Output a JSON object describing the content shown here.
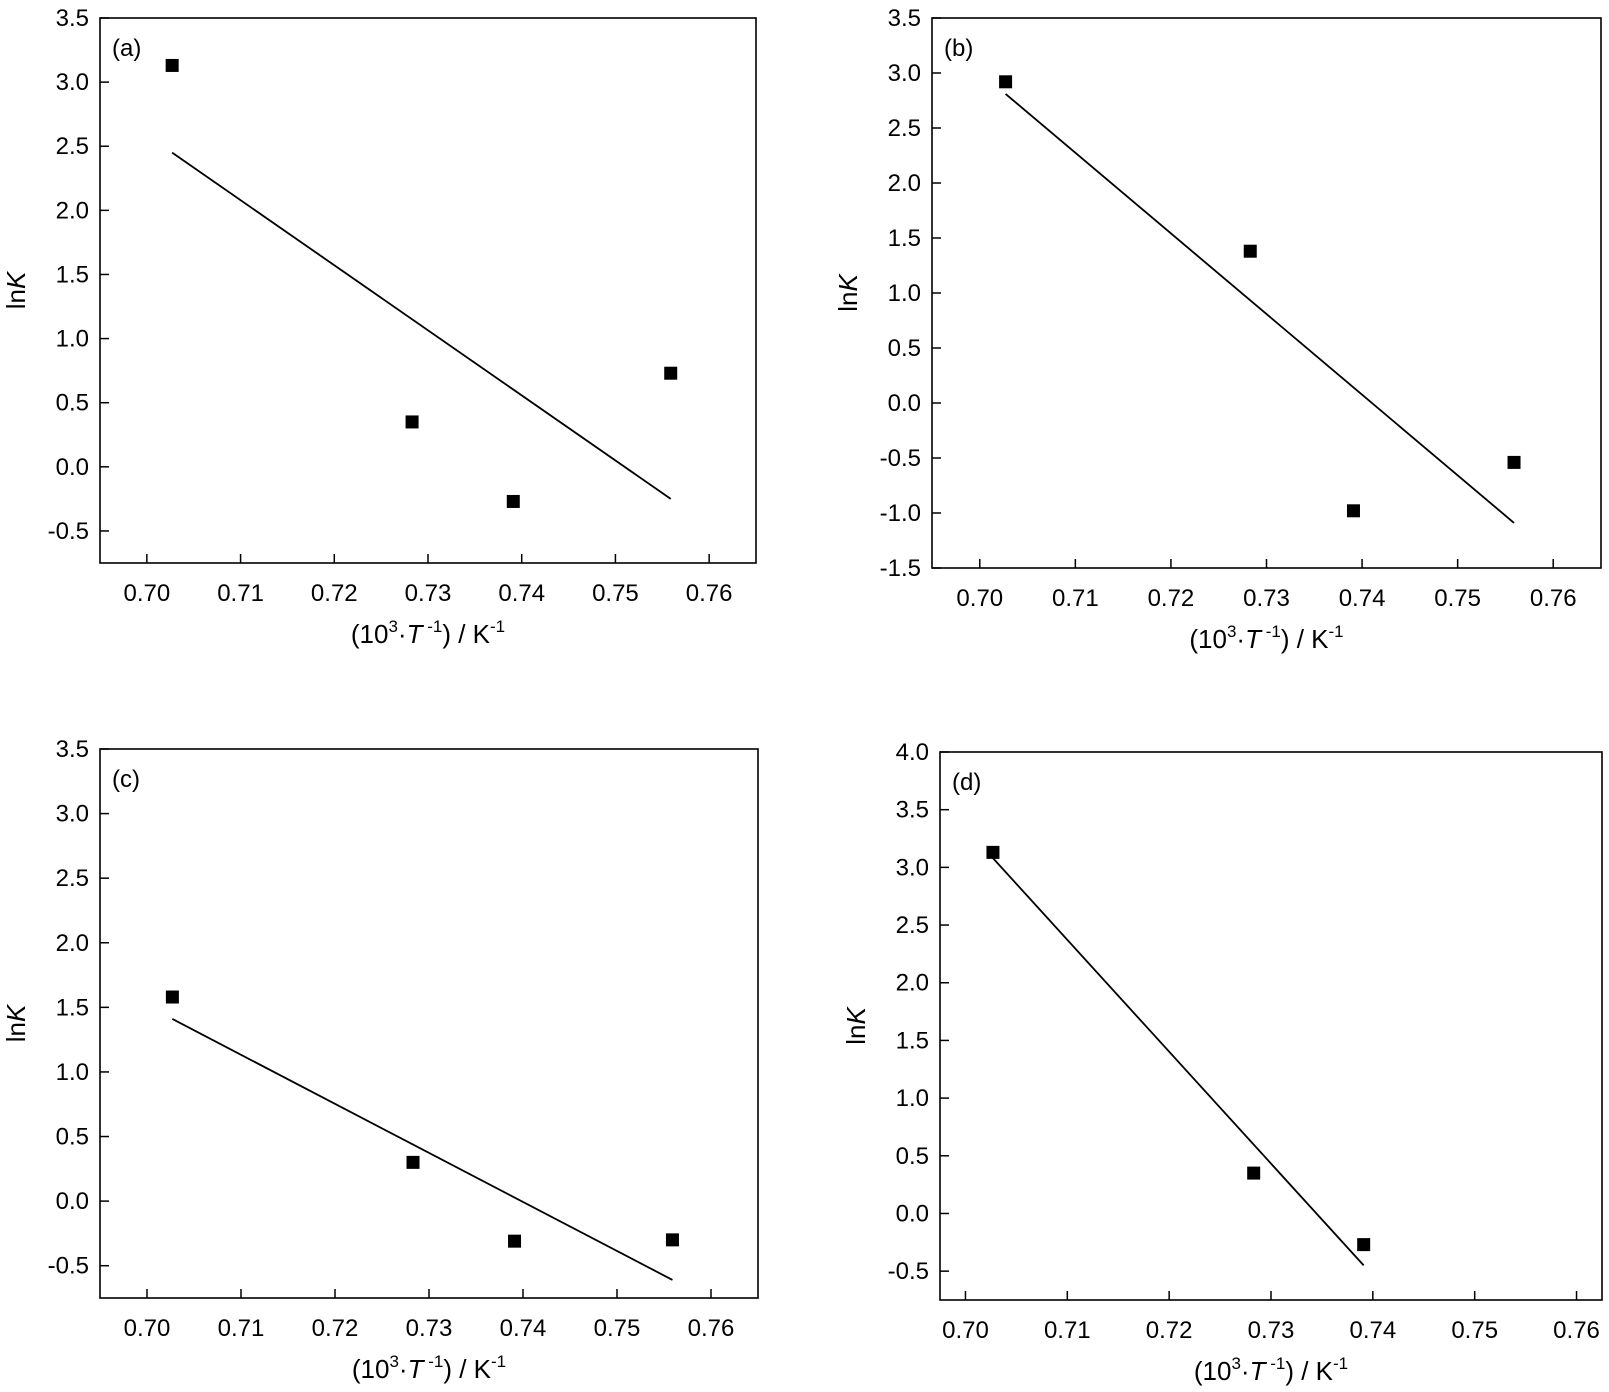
{
  "chart_data": [
    {
      "type": "scatter",
      "panel_label": "(a)",
      "xlim": [
        0.695,
        0.765
      ],
      "ylim": [
        -0.75,
        3.5
      ],
      "x_ticks": [
        "0.70",
        "0.71",
        "0.72",
        "0.73",
        "0.74",
        "0.75",
        "0.76"
      ],
      "y_ticks": [
        "-0.5",
        "0.0",
        "0.5",
        "1.0",
        "1.5",
        "2.0",
        "2.5",
        "3.0",
        "3.5"
      ],
      "points": [
        {
          "x": 0.7027,
          "y": 3.13
        },
        {
          "x": 0.7283,
          "y": 0.35
        },
        {
          "x": 0.7391,
          "y": -0.27
        },
        {
          "x": 0.7559,
          "y": 0.73
        }
      ],
      "fit_line": [
        [
          0.7027,
          2.45
        ],
        [
          0.7559,
          -0.25
        ]
      ],
      "grid": false
    },
    {
      "type": "scatter",
      "panel_label": "(b)",
      "xlim": [
        0.695,
        0.765
      ],
      "ylim": [
        -1.5,
        3.5
      ],
      "x_ticks": [
        "0.70",
        "0.71",
        "0.72",
        "0.73",
        "0.74",
        "0.75",
        "0.76"
      ],
      "y_ticks": [
        "-1.5",
        "-1.0",
        "-0.5",
        "0.0",
        "0.5",
        "1.0",
        "1.5",
        "2.0",
        "2.5",
        "3.0",
        "3.5"
      ],
      "points": [
        {
          "x": 0.7027,
          "y": 2.92
        },
        {
          "x": 0.7283,
          "y": 1.38
        },
        {
          "x": 0.7391,
          "y": -0.98
        },
        {
          "x": 0.7559,
          "y": -0.54
        }
      ],
      "fit_line": [
        [
          0.7027,
          2.81
        ],
        [
          0.7559,
          -1.09
        ]
      ],
      "grid": false
    },
    {
      "type": "scatter",
      "panel_label": "(c)",
      "xlim": [
        0.695,
        0.765
      ],
      "ylim": [
        -0.75,
        3.5
      ],
      "x_ticks": [
        "0.70",
        "0.71",
        "0.72",
        "0.73",
        "0.74",
        "0.75",
        "0.76"
      ],
      "y_ticks": [
        "-0.5",
        "0.0",
        "0.5",
        "1.0",
        "1.5",
        "2.0",
        "2.5",
        "3.0",
        "3.5"
      ],
      "points": [
        {
          "x": 0.7027,
          "y": 1.58
        },
        {
          "x": 0.7283,
          "y": 0.3
        },
        {
          "x": 0.7391,
          "y": -0.31
        },
        {
          "x": 0.7559,
          "y": -0.3
        }
      ],
      "fit_line": [
        [
          0.7027,
          1.41
        ],
        [
          0.7559,
          -0.61
        ]
      ],
      "grid": false
    },
    {
      "type": "scatter",
      "panel_label": "(d)",
      "xlim": [
        0.6975,
        0.7625
      ],
      "ylim": [
        -0.75,
        4.0
      ],
      "x_ticks": [
        "0.70",
        "0.71",
        "0.72",
        "0.73",
        "0.74",
        "0.75",
        "0.76"
      ],
      "y_ticks": [
        "-0.5",
        "0.0",
        "0.5",
        "1.0",
        "1.5",
        "2.0",
        "2.5",
        "3.0",
        "3.5",
        "4.0"
      ],
      "points": [
        {
          "x": 0.7027,
          "y": 3.13
        },
        {
          "x": 0.7283,
          "y": 0.35
        },
        {
          "x": 0.7391,
          "y": -0.27
        }
      ],
      "fit_line": [
        [
          0.7027,
          3.08
        ],
        [
          0.7391,
          -0.45
        ]
      ],
      "grid": false
    }
  ],
  "axis_text": {
    "y_prefix": "ln",
    "y_var": "K",
    "x_open": "(10",
    "x_exp": "3",
    "x_dot": "·",
    "x_var": "T",
    "x_exp2": " -1",
    "x_close": ") / K",
    "x_unit_exp": "-1"
  },
  "style": {
    "line_color": "#000000",
    "marker_color": "#000000",
    "background": "#ffffff"
  }
}
